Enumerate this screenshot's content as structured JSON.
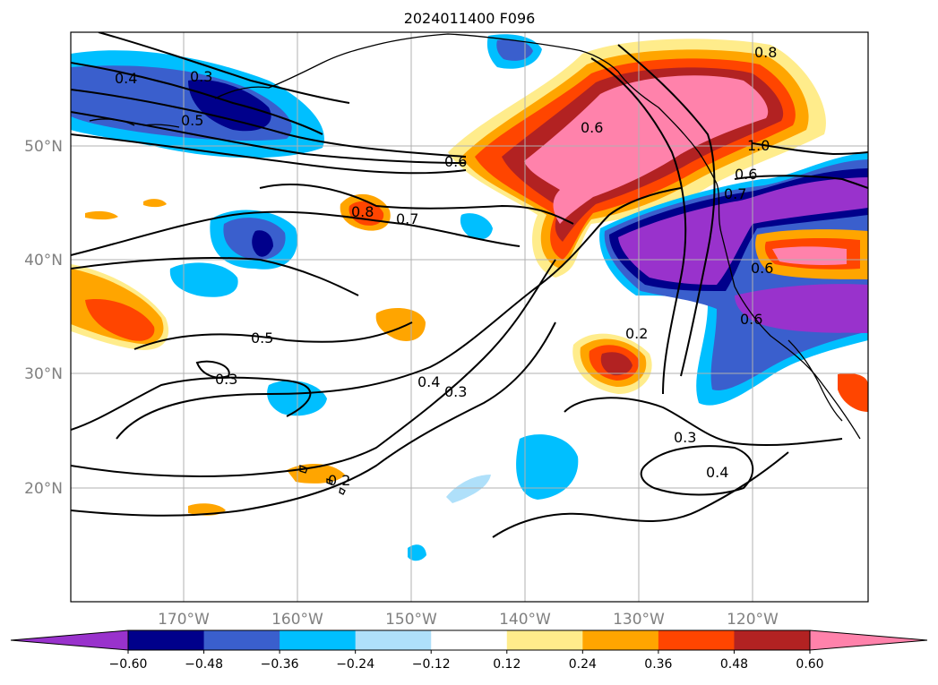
{
  "title": "2024011400 F096",
  "map": {
    "lon_labels": [
      "170°W",
      "160°W",
      "150°W",
      "140°W",
      "130°W",
      "120°W"
    ],
    "lat_labels": [
      "50°N",
      "40°N",
      "30°N",
      "20°N"
    ],
    "grid": true
  },
  "colorbar": {
    "ticks": [
      "−0.60",
      "−0.48",
      "−0.36",
      "−0.24",
      "−0.12",
      "0.12",
      "0.24",
      "0.36",
      "0.48",
      "0.60"
    ],
    "colors": [
      "#9932cc",
      "#00008b",
      "#3a5fcd",
      "#00bfff",
      "#afe0fa",
      "#ffffff",
      "#ffec8b",
      "#ffa500",
      "#ff4500",
      "#b22222",
      "#ff82ab"
    ],
    "extend": "both"
  },
  "contour_labels": [
    "0.4",
    "0.3",
    "0.5",
    "0.6",
    "0.6",
    "0.8",
    "1.0",
    "0.8",
    "0.7",
    "0.7",
    "0.6",
    "0.5",
    "0.3",
    "0.4",
    "0.3",
    "0.2",
    "0.2",
    "0.3",
    "0.4",
    "0.6",
    "0.6"
  ]
}
